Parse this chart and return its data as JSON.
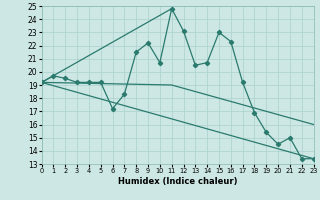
{
  "xlabel": "Humidex (Indice chaleur)",
  "xlim": [
    0,
    23
  ],
  "ylim": [
    13,
    25
  ],
  "xticks": [
    0,
    1,
    2,
    3,
    4,
    5,
    6,
    7,
    8,
    9,
    10,
    11,
    12,
    13,
    14,
    15,
    16,
    17,
    18,
    19,
    20,
    21,
    22,
    23
  ],
  "yticks": [
    13,
    14,
    15,
    16,
    17,
    18,
    19,
    20,
    21,
    22,
    23,
    24,
    25
  ],
  "bg_color": "#cde8e4",
  "grid_color": "#b0d4d0",
  "line_color": "#2a7a6e",
  "zigzag_x": [
    0,
    1,
    2,
    3,
    4,
    5,
    6,
    7,
    8,
    9,
    10,
    11,
    12,
    13,
    14,
    15,
    16,
    17,
    18,
    19,
    20,
    21,
    22,
    23
  ],
  "zigzag_y": [
    19.2,
    19.7,
    19.5,
    19.2,
    19.2,
    19.2,
    17.2,
    18.3,
    21.5,
    22.2,
    20.7,
    24.8,
    23.1,
    20.5,
    20.7,
    23.0,
    22.3,
    19.2,
    16.9,
    15.4,
    14.5,
    15.0,
    13.4,
    13.4
  ],
  "tri_line1_x": [
    0,
    23
  ],
  "tri_line1_y": [
    19.2,
    13.4
  ],
  "tri_line2_x": [
    0,
    11,
    23
  ],
  "tri_line2_y": [
    19.2,
    19.0,
    16.0
  ],
  "tri_line3_x": [
    0,
    11
  ],
  "tri_line3_y": [
    19.2,
    24.8
  ]
}
